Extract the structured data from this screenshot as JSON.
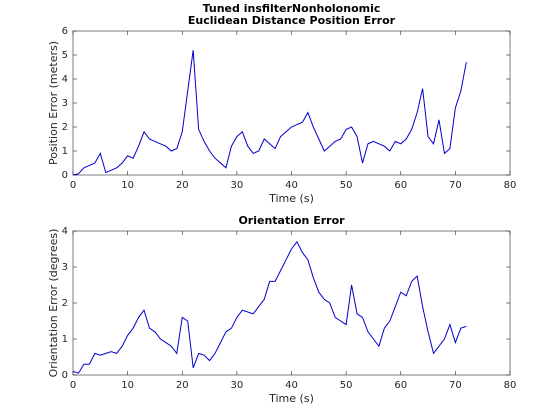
{
  "chart_data": [
    {
      "type": "line",
      "title": [
        "Tuned insfilterNonholonomic",
        "Euclidean Distance Position Error"
      ],
      "x_label": "Time (s)",
      "y_label": "Position Error (meters)",
      "xlim": [
        0,
        80
      ],
      "xticks": [
        0,
        10,
        20,
        30,
        40,
        50,
        60,
        70,
        80
      ],
      "ylim": [
        0,
        6
      ],
      "yticks": [
        0,
        1,
        2,
        3,
        4,
        5,
        6
      ],
      "x": [
        0,
        1,
        2,
        3,
        4,
        5,
        6,
        7,
        8,
        9,
        10,
        11,
        12,
        13,
        14,
        15,
        16,
        17,
        18,
        19,
        20,
        21,
        22,
        23,
        24,
        25,
        26,
        27,
        28,
        29,
        30,
        31,
        32,
        33,
        34,
        35,
        36,
        37,
        38,
        39,
        40,
        41,
        42,
        43,
        44,
        45,
        46,
        47,
        48,
        49,
        50,
        51,
        52,
        53,
        54,
        55,
        56,
        57,
        58,
        59,
        60,
        61,
        62,
        63,
        64,
        65,
        66,
        67,
        68,
        69,
        70,
        71,
        72
      ],
      "series": [
        {
          "name": "Position Error",
          "color": "#0000cc",
          "values": [
            0,
            0.05,
            0.3,
            0.4,
            0.5,
            0.9,
            0.1,
            0.2,
            0.3,
            0.5,
            0.8,
            0.7,
            1.2,
            1.8,
            1.5,
            1.4,
            1.3,
            1.2,
            1.0,
            1.1,
            1.8,
            3.5,
            5.2,
            1.9,
            1.4,
            1.0,
            0.7,
            0.5,
            0.3,
            1.2,
            1.6,
            1.8,
            1.2,
            0.9,
            1.0,
            1.5,
            1.3,
            1.1,
            1.6,
            1.8,
            2.0,
            2.1,
            2.2,
            2.6,
            2.0,
            1.5,
            1.0,
            1.2,
            1.4,
            1.5,
            1.9,
            2.0,
            1.6,
            0.5,
            1.3,
            1.4,
            1.3,
            1.2,
            1.0,
            1.4,
            1.3,
            1.5,
            1.9,
            2.6,
            3.6,
            1.6,
            1.3,
            2.3,
            0.9,
            1.1,
            2.8,
            3.5,
            4.7
          ]
        }
      ]
    },
    {
      "type": "line",
      "title": [
        "Orientation Error"
      ],
      "x_label": "Time (s)",
      "y_label": "Orientation Error (degrees)",
      "xlim": [
        0,
        80
      ],
      "xticks": [
        0,
        10,
        20,
        30,
        40,
        50,
        60,
        70,
        80
      ],
      "ylim": [
        0,
        4
      ],
      "yticks": [
        0,
        1,
        2,
        3,
        4
      ],
      "x": [
        0,
        1,
        2,
        3,
        4,
        5,
        6,
        7,
        8,
        9,
        10,
        11,
        12,
        13,
        14,
        15,
        16,
        17,
        18,
        19,
        20,
        21,
        22,
        23,
        24,
        25,
        26,
        27,
        28,
        29,
        30,
        31,
        32,
        33,
        34,
        35,
        36,
        37,
        38,
        39,
        40,
        41,
        42,
        43,
        44,
        45,
        46,
        47,
        48,
        49,
        50,
        51,
        52,
        53,
        54,
        55,
        56,
        57,
        58,
        59,
        60,
        61,
        62,
        63,
        64,
        65,
        66,
        67,
        68,
        69,
        70,
        71,
        72
      ],
      "series": [
        {
          "name": "Orientation Error",
          "color": "#0000cc",
          "values": [
            0.1,
            0.05,
            0.3,
            0.3,
            0.6,
            0.55,
            0.6,
            0.65,
            0.6,
            0.8,
            1.1,
            1.3,
            1.6,
            1.8,
            1.3,
            1.2,
            1.0,
            0.9,
            0.8,
            0.6,
            1.6,
            1.5,
            0.2,
            0.6,
            0.55,
            0.4,
            0.6,
            0.9,
            1.2,
            1.3,
            1.6,
            1.8,
            1.75,
            1.7,
            1.9,
            2.1,
            2.6,
            2.6,
            2.9,
            3.2,
            3.5,
            3.7,
            3.4,
            3.2,
            2.7,
            2.3,
            2.1,
            2.0,
            1.6,
            1.5,
            1.4,
            2.5,
            1.7,
            1.6,
            1.2,
            1.0,
            0.8,
            1.3,
            1.5,
            1.9,
            2.3,
            2.2,
            2.6,
            2.75,
            1.9,
            1.2,
            0.6,
            0.8,
            1.0,
            1.4,
            0.9,
            1.3,
            1.35
          ]
        }
      ]
    }
  ]
}
